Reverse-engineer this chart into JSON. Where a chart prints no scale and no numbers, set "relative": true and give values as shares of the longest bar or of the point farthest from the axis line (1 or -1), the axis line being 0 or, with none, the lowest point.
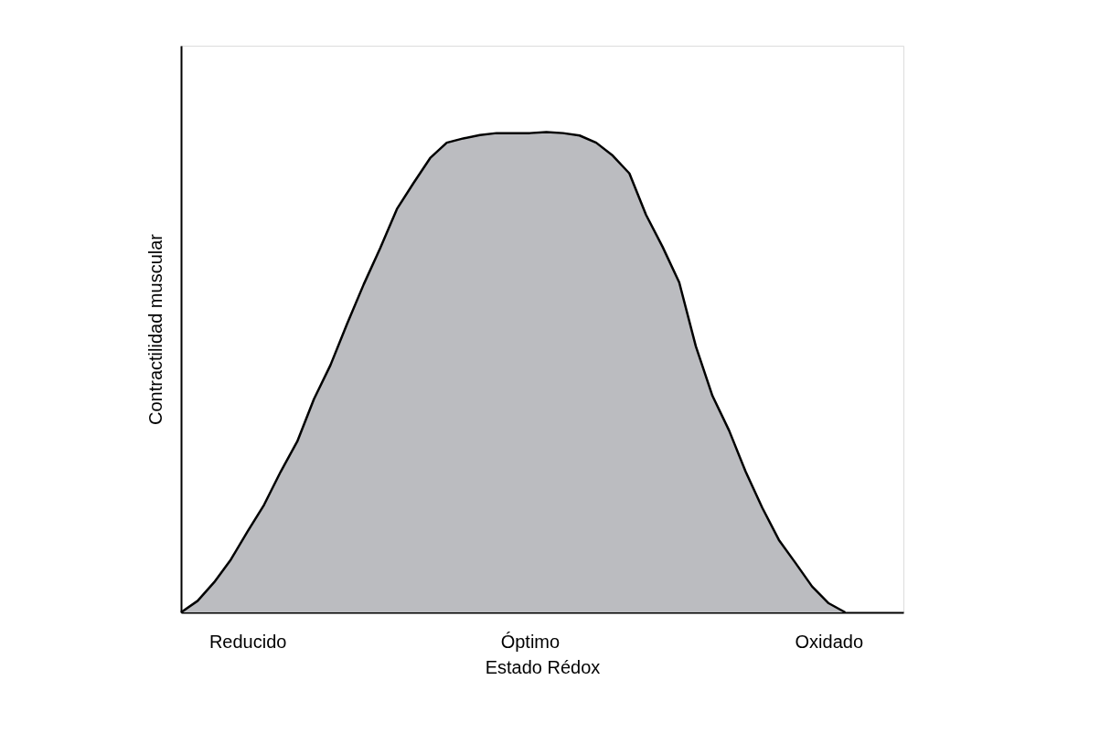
{
  "chart_data": {
    "type": "area",
    "relative": true,
    "xlabel": "Estado Rédox",
    "ylabel": "Contractilidad muscular",
    "grid": false,
    "categories": [
      null,
      null,
      null,
      null,
      "Reducido",
      null,
      null,
      null,
      null,
      null,
      null,
      null,
      null,
      null,
      null,
      null,
      null,
      null,
      null,
      null,
      null,
      "Óptimo",
      null,
      null,
      null,
      null,
      null,
      null,
      null,
      null,
      null,
      null,
      null,
      null,
      null,
      null,
      null,
      null,
      null,
      "Oxidado",
      null,
      null,
      null,
      null
    ],
    "series": [
      {
        "color": "#bbbcc0",
        "values": [
          0,
          0.024,
          0.063,
          0.11,
          0.168,
          0.224,
          0.293,
          0.356,
          0.444,
          0.515,
          0.601,
          0.683,
          0.759,
          0.84,
          0.894,
          0.946,
          0.978,
          0.987,
          0.994,
          0.998,
          0.998,
          0.998,
          1,
          0.998,
          0.993,
          0.978,
          0.951,
          0.914,
          0.828,
          0.761,
          0.687,
          0.554,
          0.451,
          0.379,
          0.293,
          0.218,
          0.151,
          0.103,
          0.054,
          0.019,
          0,
          null,
          null,
          null
        ]
      }
    ]
  }
}
